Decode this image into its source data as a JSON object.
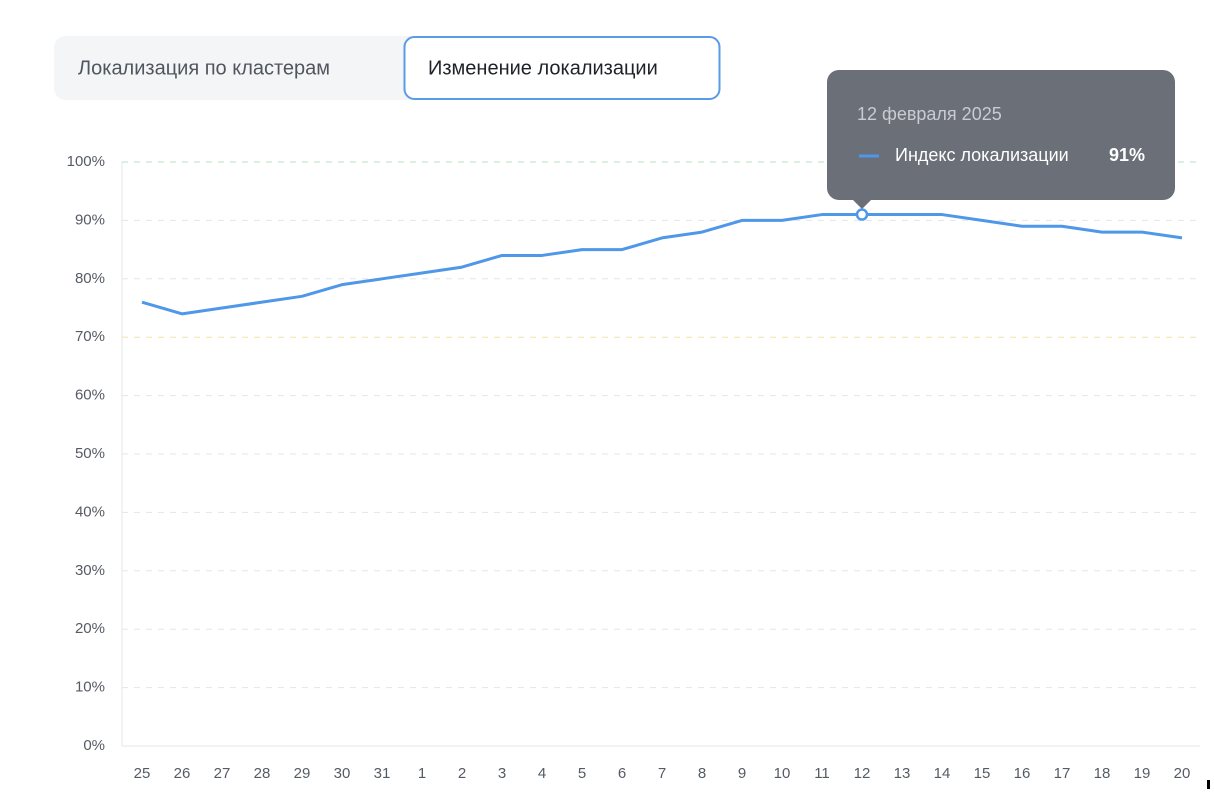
{
  "tabs": [
    "Локализация по кластерам",
    "Изменение локализации"
  ],
  "chart_data": {
    "type": "line",
    "categories": [
      "25",
      "26",
      "27",
      "28",
      "29",
      "30",
      "31",
      "1",
      "2",
      "3",
      "4",
      "5",
      "6",
      "7",
      "8",
      "9",
      "10",
      "11",
      "12",
      "13",
      "14",
      "15",
      "16",
      "17",
      "18",
      "19",
      "20"
    ],
    "series": [
      {
        "name": "Индекс локализации",
        "color": "#4f97e8",
        "values": [
          76,
          74,
          75,
          76,
          77,
          79,
          80,
          81,
          82,
          84,
          84,
          85,
          85,
          87,
          88,
          90,
          90,
          91,
          91,
          91,
          91,
          90,
          89,
          89,
          88,
          88,
          87
        ],
        "value_labels": [
          null,
          null,
          null,
          null,
          null,
          null,
          null,
          null,
          null,
          null,
          null,
          null,
          null,
          null,
          null,
          null,
          null,
          null,
          "91%",
          null,
          null,
          null,
          null,
          null,
          null,
          null,
          null
        ]
      }
    ],
    "tooltip_title": "12 февраля 2025",
    "ylim": [
      0,
      100
    ],
    "yticks": [
      {
        "value": 0,
        "label": "0%"
      },
      {
        "value": 10,
        "label": "10%"
      },
      {
        "value": 20,
        "label": "20%"
      },
      {
        "value": 30,
        "label": "30%"
      },
      {
        "value": 40,
        "label": "40%"
      },
      {
        "value": 50,
        "label": "50%"
      },
      {
        "value": 60,
        "label": "60%"
      },
      {
        "value": 70,
        "label": "70%"
      },
      {
        "value": 80,
        "label": "80%"
      },
      {
        "value": 90,
        "label": "90%"
      },
      {
        "value": 100,
        "label": "100%"
      }
    ],
    "grid": true,
    "grid_colors": [
      "#e3e6ea",
      "#e3e6ea",
      "#e3e6ea",
      "#e3e6ea",
      "#e3e6ea",
      "#e3e6ea",
      "#e3e6ea",
      "#f2e3a6",
      "#e3e6ea",
      "#e3e6ea",
      "#b9e0c2"
    ]
  }
}
